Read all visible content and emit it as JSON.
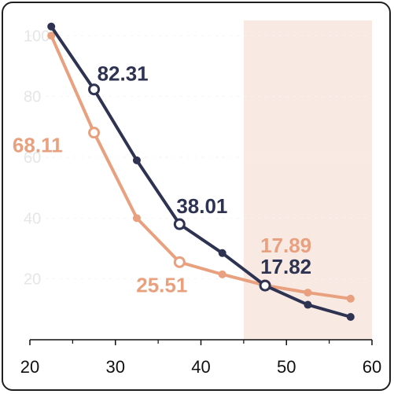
{
  "chart_data": {
    "type": "line",
    "xlim": [
      20,
      60
    ],
    "ylim": [
      0,
      105
    ],
    "x_ticks": [
      20,
      30,
      40,
      50,
      60
    ],
    "x_minor_ticks": [
      25,
      35,
      45,
      55
    ],
    "y_ticks": [
      20,
      40,
      60,
      80,
      100
    ],
    "grid": false,
    "highlight_range": [
      45,
      60
    ],
    "series": [
      {
        "color": "#2f3352",
        "x": [
          22.5,
          27.5,
          32.5,
          37.5,
          42.5,
          47.5,
          52.5,
          57.5
        ],
        "values": [
          103,
          82.31,
          59,
          38.01,
          28.5,
          17.82,
          11.5,
          7.5
        ],
        "labeled": [
          {
            "index": 1,
            "text": "82.31"
          },
          {
            "index": 3,
            "text": "38.01"
          },
          {
            "index": 5,
            "text": "17.82"
          }
        ]
      },
      {
        "color": "#e8a07e",
        "x": [
          22.5,
          27.5,
          32.5,
          37.5,
          42.5,
          47.5,
          52.5,
          57.5
        ],
        "values": [
          100,
          68.11,
          40,
          25.51,
          21.5,
          17.89,
          15.5,
          13.5
        ],
        "labeled": [
          {
            "index": 1,
            "text": "68.11"
          },
          {
            "index": 3,
            "text": "25.51"
          },
          {
            "index": 5,
            "text": "17.89"
          }
        ]
      }
    ],
    "colors": {
      "highlight": "#f8e9e3",
      "axis": "#111111",
      "ytick": "#e6e6e6"
    }
  }
}
